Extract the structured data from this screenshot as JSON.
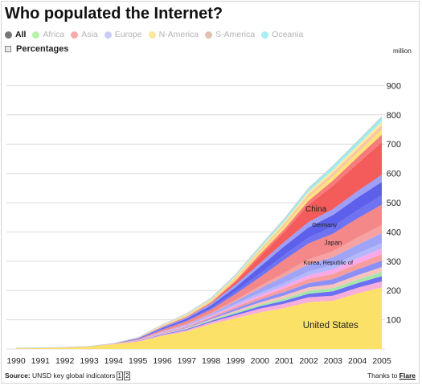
{
  "title": "Who populated the Internet?",
  "filters": [
    {
      "label": "All",
      "color": "#777777",
      "active": true
    },
    {
      "label": "Africa",
      "color": "#b6f2a8",
      "active": false
    },
    {
      "label": "Asia",
      "color": "#f9a9a9",
      "active": false
    },
    {
      "label": "Europe",
      "color": "#c9cdf7",
      "active": false
    },
    {
      "label": "N-America",
      "color": "#fbe89a",
      "active": false
    },
    {
      "label": "S-America",
      "color": "#e2c0b2",
      "active": false
    },
    {
      "label": "Oceania",
      "color": "#a9eef2",
      "active": false
    }
  ],
  "percentages_label": "Percentages",
  "footer": {
    "source_prefix": "Source:",
    "source_text": "UNSD key global indicators",
    "refs": [
      "1",
      "2"
    ],
    "thanks_prefix": "Thanks to",
    "thanks_link": "Flare"
  },
  "chart_data": {
    "type": "area",
    "stacked": true,
    "title": "Who populated the Internet?",
    "ylabel": "million",
    "x": [
      1990,
      1991,
      1992,
      1993,
      1994,
      1995,
      1996,
      1997,
      1998,
      1999,
      2000,
      2001,
      2002,
      2003,
      2004,
      2005
    ],
    "xlim": [
      1990,
      2005
    ],
    "ylim": [
      0,
      1000
    ],
    "yticks": [
      100,
      200,
      300,
      400,
      500,
      600,
      700,
      800,
      900
    ],
    "grid": true,
    "series": [
      {
        "name": "United States",
        "color": "#fce168",
        "values": [
          3,
          4,
          6,
          9,
          16,
          25,
          45,
          60,
          85,
          105,
          125,
          140,
          160,
          165,
          190,
          210
        ]
      },
      {
        "color": "#f7aeda",
        "values": [
          0,
          0,
          0,
          0,
          1,
          2,
          3,
          5,
          7,
          10,
          13,
          15,
          17,
          17,
          19,
          21
        ]
      },
      {
        "color": "#6c6ff3",
        "values": [
          0,
          0,
          0,
          0,
          0,
          1,
          2,
          3,
          4,
          6,
          8,
          10,
          12,
          15,
          16,
          18
        ]
      },
      {
        "color": "#a3e6a9",
        "values": [
          0,
          0,
          0,
          0,
          0,
          0,
          1,
          2,
          3,
          5,
          6,
          8,
          10,
          11,
          12,
          14
        ]
      },
      {
        "color": "#fcc2bd",
        "values": [
          0,
          0,
          0,
          0,
          0,
          1,
          1,
          2,
          3,
          5,
          7,
          10,
          12,
          13,
          15,
          17
        ]
      },
      {
        "color": "#8c8ff7",
        "values": [
          0,
          0,
          0,
          0,
          0,
          0,
          1,
          2,
          4,
          7,
          10,
          12,
          14,
          18,
          20,
          22
        ]
      },
      {
        "color": "#f79d9d",
        "values": [
          0,
          0,
          0,
          0,
          0,
          1,
          2,
          3,
          4,
          6,
          8,
          12,
          15,
          18,
          20,
          22
        ]
      },
      {
        "color": "#f9a9e9",
        "values": [
          0,
          0,
          0,
          0,
          0,
          0,
          1,
          2,
          3,
          5,
          7,
          9,
          12,
          15,
          17,
          19
        ]
      },
      {
        "color": "#b4b7fa",
        "values": [
          0,
          0,
          0,
          0,
          0,
          1,
          2,
          3,
          4,
          6,
          8,
          10,
          13,
          15,
          17,
          19
        ]
      },
      {
        "name": "Korea, Republic of",
        "color": "#a0a4f7",
        "values": [
          0,
          0,
          0,
          0,
          0,
          0,
          1,
          2,
          3,
          8,
          15,
          22,
          25,
          27,
          30,
          33
        ]
      },
      {
        "color": "#f7a2a2",
        "values": [
          0,
          0,
          0,
          0,
          0,
          0,
          1,
          2,
          3,
          5,
          8,
          12,
          16,
          20,
          25,
          28
        ]
      },
      {
        "name": "Japan",
        "color": "#f48888",
        "values": [
          0,
          0,
          0,
          0,
          1,
          2,
          6,
          9,
          12,
          20,
          30,
          45,
          55,
          60,
          65,
          70
        ]
      },
      {
        "color": "#6f72f1",
        "values": [
          0,
          0,
          0,
          0,
          0,
          1,
          2,
          3,
          5,
          8,
          12,
          16,
          20,
          24,
          28,
          32
        ]
      },
      {
        "name": "Germany",
        "color": "#5d60ea",
        "values": [
          0,
          0,
          0,
          0,
          1,
          2,
          4,
          6,
          9,
          15,
          24,
          30,
          35,
          40,
          43,
          46
        ]
      },
      {
        "color": "#9da0f6",
        "values": [
          0,
          0,
          0,
          0,
          0,
          1,
          3,
          4,
          6,
          9,
          12,
          15,
          18,
          20,
          22,
          24
        ]
      },
      {
        "name": "China",
        "color": "#f45b5b",
        "values": [
          0,
          0,
          0,
          0,
          0,
          0,
          1,
          1,
          2,
          9,
          23,
          34,
          59,
          80,
          94,
          111
        ]
      },
      {
        "color": "#f77b7b",
        "values": [
          0,
          0,
          0,
          0,
          0,
          0,
          1,
          2,
          3,
          5,
          8,
          10,
          14,
          18,
          22,
          26
        ]
      },
      {
        "color": "#fde47a",
        "values": [
          0,
          0,
          0,
          0,
          0,
          1,
          2,
          3,
          4,
          6,
          8,
          10,
          12,
          14,
          16,
          18
        ]
      },
      {
        "color": "#fbc6a0",
        "values": [
          0,
          0,
          0,
          0,
          0,
          0,
          1,
          2,
          3,
          4,
          6,
          8,
          10,
          12,
          13,
          15
        ]
      },
      {
        "color": "#fbe9a5",
        "values": [
          0,
          0,
          0,
          0,
          0,
          0,
          1,
          2,
          3,
          4,
          5,
          7,
          9,
          10,
          11,
          12
        ]
      },
      {
        "color": "#9eecf0",
        "values": [
          0,
          0,
          0,
          0,
          0,
          1,
          2,
          3,
          4,
          6,
          8,
          10,
          12,
          14,
          15,
          17
        ]
      }
    ]
  }
}
